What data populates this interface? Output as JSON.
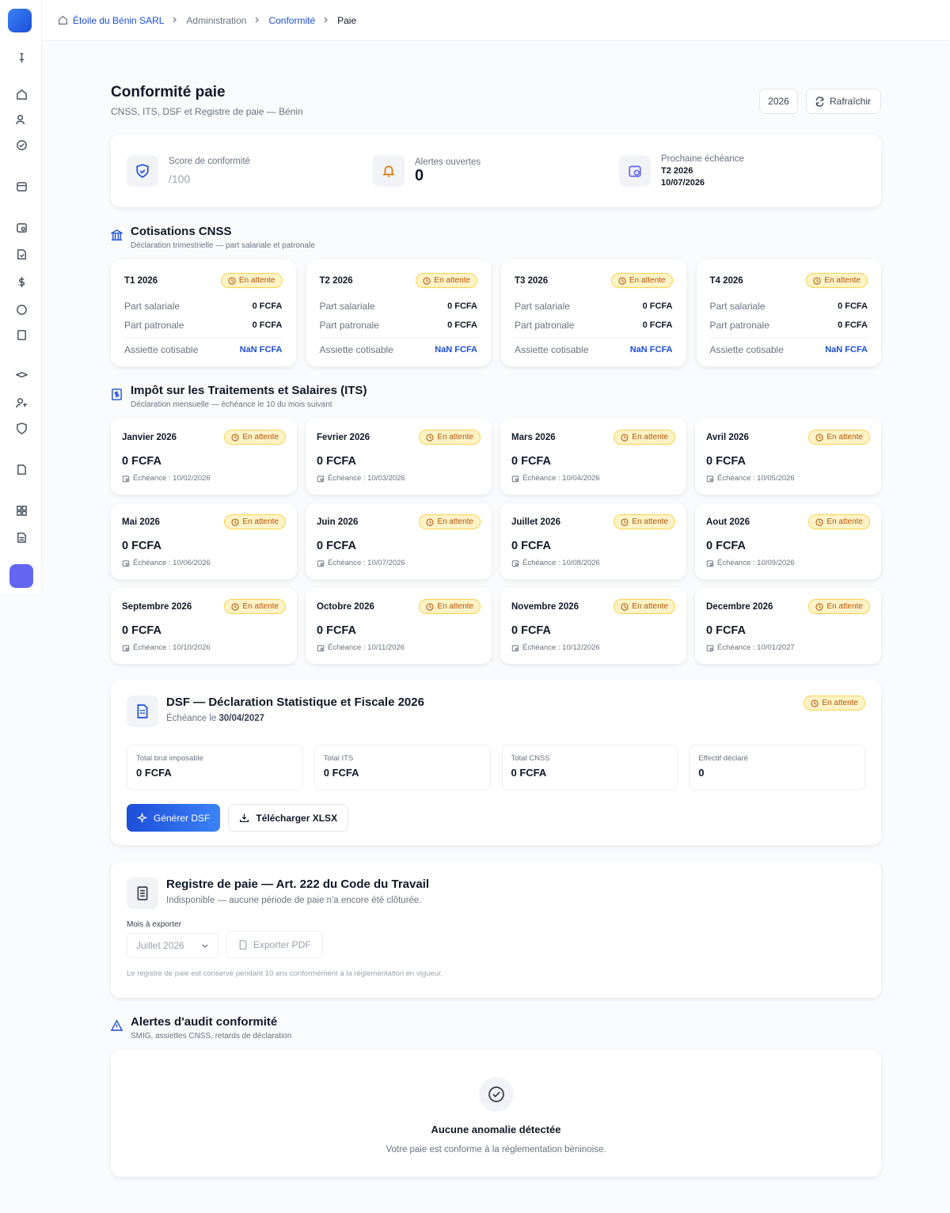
{
  "breadcrumb": [
    "Étoile du Bénin SARL",
    "Administration",
    "Conformité",
    "Paie"
  ],
  "header": {
    "title": "Conformité paie",
    "subtitle": "CNSS, ITS, DSF et Registre de paie — Bénin",
    "year": "2026",
    "refresh": "Rafraîchir"
  },
  "summary": {
    "score_label": "Score de conformité",
    "score_value": "/100",
    "alerts_label": "Alertes ouvertes",
    "alerts_value": "0",
    "next_label": "Prochaine échéance",
    "next_period": "T2 2026",
    "next_date": "10/07/2026"
  },
  "cnss": {
    "title": "Cotisations CNSS",
    "subtitle": "Déclaration trimestrielle — part salariale et patronale",
    "cards": [
      {
        "period": "T1 2026",
        "status": "En attente",
        "rows": [
          {
            "label": "Part salariale",
            "value": "0 FCFA"
          },
          {
            "label": "Part patronale",
            "value": "0 FCFA"
          },
          {
            "label": "Assiette cotisable",
            "value": "NaN FCFA"
          }
        ]
      },
      {
        "period": "T2 2026",
        "status": "En attente",
        "rows": [
          {
            "label": "Part salariale",
            "value": "0 FCFA"
          },
          {
            "label": "Part patronale",
            "value": "0 FCFA"
          },
          {
            "label": "Assiette cotisable",
            "value": "NaN FCFA"
          }
        ]
      },
      {
        "period": "T3 2026",
        "status": "En attente",
        "rows": [
          {
            "label": "Part salariale",
            "value": "0 FCFA"
          },
          {
            "label": "Part patronale",
            "value": "0 FCFA"
          },
          {
            "label": "Assiette cotisable",
            "value": "NaN FCFA"
          }
        ]
      },
      {
        "period": "T4 2026",
        "status": "En attente",
        "rows": [
          {
            "label": "Part salariale",
            "value": "0 FCFA"
          },
          {
            "label": "Part patronale",
            "value": "0 FCFA"
          },
          {
            "label": "Assiette cotisable",
            "value": "NaN FCFA"
          }
        ]
      }
    ]
  },
  "its": {
    "title": "Impôt sur les Traitements et Salaires (ITS)",
    "subtitle": "Déclaration mensuelle — échéance le 10 du mois suivant",
    "cards": [
      {
        "month": "Janvier 2026",
        "status": "En attente",
        "amount": "0 FCFA",
        "due": "Échéance : 10/02/2026"
      },
      {
        "month": "Fevrier 2026",
        "status": "En attente",
        "amount": "0 FCFA",
        "due": "Échéance : 10/03/2026"
      },
      {
        "month": "Mars 2026",
        "status": "En attente",
        "amount": "0 FCFA",
        "due": "Échéance : 10/04/2026"
      },
      {
        "month": "Avril 2026",
        "status": "En attente",
        "amount": "0 FCFA",
        "due": "Échéance : 10/05/2026"
      },
      {
        "month": "Mai 2026",
        "status": "En attente",
        "amount": "0 FCFA",
        "due": "Échéance : 10/06/2026"
      },
      {
        "month": "Juin 2026",
        "status": "En attente",
        "amount": "0 FCFA",
        "due": "Échéance : 10/07/2026"
      },
      {
        "month": "Juillet 2026",
        "status": "En attente",
        "amount": "0 FCFA",
        "due": "Échéance : 10/08/2026"
      },
      {
        "month": "Aout 2026",
        "status": "En attente",
        "amount": "0 FCFA",
        "due": "Échéance : 10/09/2026"
      },
      {
        "month": "Septembre 2026",
        "status": "En attente",
        "amount": "0 FCFA",
        "due": "Échéance : 10/10/2026"
      },
      {
        "month": "Octobre 2026",
        "status": "En attente",
        "amount": "0 FCFA",
        "due": "Échéance : 10/11/2026"
      },
      {
        "month": "Novembre 2026",
        "status": "En attente",
        "amount": "0 FCFA",
        "due": "Échéance : 10/12/2026"
      },
      {
        "month": "Decembre 2026",
        "status": "En attente",
        "amount": "0 FCFA",
        "due": "Échéance : 10/01/2027"
      }
    ]
  },
  "dsf": {
    "title": "DSF — Déclaration Statistique et Fiscale 2026",
    "due_prefix": "Échéance le",
    "due_date": "30/04/2027",
    "status": "En attente",
    "stats": [
      {
        "label": "Total brut imposable",
        "value": "0 FCFA"
      },
      {
        "label": "Total ITS",
        "value": "0 FCFA"
      },
      {
        "label": "Total CNSS",
        "value": "0 FCFA"
      },
      {
        "label": "Effectif déclaré",
        "value": "0"
      }
    ],
    "generate": "Générer DSF",
    "download": "Télécharger XLSX"
  },
  "registre": {
    "title": "Registre de paie — Art. 222 du Code du Travail",
    "subtitle": "Indisponible — aucune période de paie n'a encore été clôturée.",
    "month_label": "Mois à exporter",
    "month_value": "Juillet 2026",
    "export": "Exporter PDF",
    "note": "Le registre de paie est conservé pendant 10 ans conformément à la réglementation en vigueur."
  },
  "alerts": {
    "title": "Alertes d'audit conformité",
    "subtitle": "SMIG, assiettes CNSS, retards de déclaration",
    "empty_title": "Aucune anomalie détectée",
    "empty_text": "Votre paie est conforme à la réglementation béninoise."
  }
}
